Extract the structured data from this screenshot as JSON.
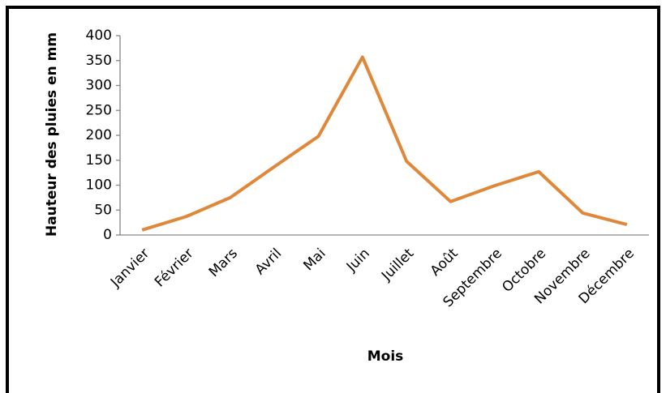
{
  "chart_data": {
    "type": "line",
    "x_label": "Mois",
    "y_label": "Hauteur  des pluies en mm",
    "categories": [
      "Janvier",
      "Février",
      "Mars",
      "Avril",
      "Mai",
      "Juin",
      "Juillet",
      "Août",
      "Septembre",
      "Octobre",
      "Novembre",
      "Décembre"
    ],
    "series": [
      {
        "color": "#e0883a",
        "values": [
          10,
          37,
          75,
          137,
          198,
          357,
          148,
          67,
          99,
          127,
          44,
          21
        ]
      }
    ],
    "ylim": [
      0,
      400
    ],
    "yticks": [
      0,
      50,
      100,
      150,
      200,
      250,
      300,
      350,
      400
    ],
    "grid": false
  }
}
